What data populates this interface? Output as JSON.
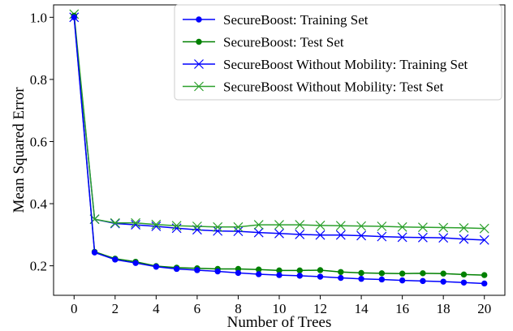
{
  "chart_data": {
    "type": "line",
    "xlabel": "Number of Trees",
    "ylabel": "Mean Squared Error",
    "xlim": [
      -1,
      21
    ],
    "ylim": [
      0.105,
      1.04
    ],
    "xticks": [
      0,
      2,
      4,
      6,
      8,
      10,
      12,
      14,
      16,
      18,
      20
    ],
    "yticks": [
      0.2,
      0.4,
      0.6,
      0.8,
      1.0
    ],
    "ytick_labels": [
      "0.2",
      "0.4",
      "0.6",
      "0.8",
      "1.0"
    ],
    "legend_position": "top-right",
    "x": [
      0,
      1,
      2,
      3,
      4,
      5,
      6,
      7,
      8,
      9,
      10,
      11,
      12,
      13,
      14,
      15,
      16,
      17,
      18,
      19,
      20
    ],
    "series": [
      {
        "name": "SecureBoost: Training Set",
        "color": "#0000ff",
        "marker": "dot",
        "values": [
          1.0,
          0.243,
          0.22,
          0.209,
          0.197,
          0.19,
          0.186,
          0.182,
          0.177,
          0.173,
          0.17,
          0.168,
          0.165,
          0.161,
          0.158,
          0.156,
          0.153,
          0.151,
          0.149,
          0.146,
          0.143
        ]
      },
      {
        "name": "SecureBoost: Test Set",
        "color": "#008000",
        "marker": "dot",
        "values": [
          1.005,
          0.245,
          0.223,
          0.213,
          0.199,
          0.194,
          0.192,
          0.19,
          0.19,
          0.188,
          0.185,
          0.185,
          0.186,
          0.18,
          0.177,
          0.176,
          0.175,
          0.176,
          0.175,
          0.172,
          0.17
        ]
      },
      {
        "name": "SecureBoost Without Mobility: Training Set",
        "color": "#0000ff",
        "marker": "x",
        "values": [
          1.0,
          0.35,
          0.336,
          0.332,
          0.327,
          0.321,
          0.316,
          0.312,
          0.311,
          0.307,
          0.304,
          0.301,
          0.299,
          0.299,
          0.297,
          0.294,
          0.292,
          0.291,
          0.29,
          0.286,
          0.283
        ]
      },
      {
        "name": "SecureBoost Without Mobility: Test Set",
        "color": "#2ca02c",
        "marker": "x",
        "values": [
          1.01,
          0.35,
          0.338,
          0.338,
          0.333,
          0.329,
          0.327,
          0.325,
          0.325,
          0.332,
          0.332,
          0.332,
          0.33,
          0.329,
          0.328,
          0.327,
          0.325,
          0.324,
          0.323,
          0.322,
          0.32
        ]
      }
    ]
  }
}
